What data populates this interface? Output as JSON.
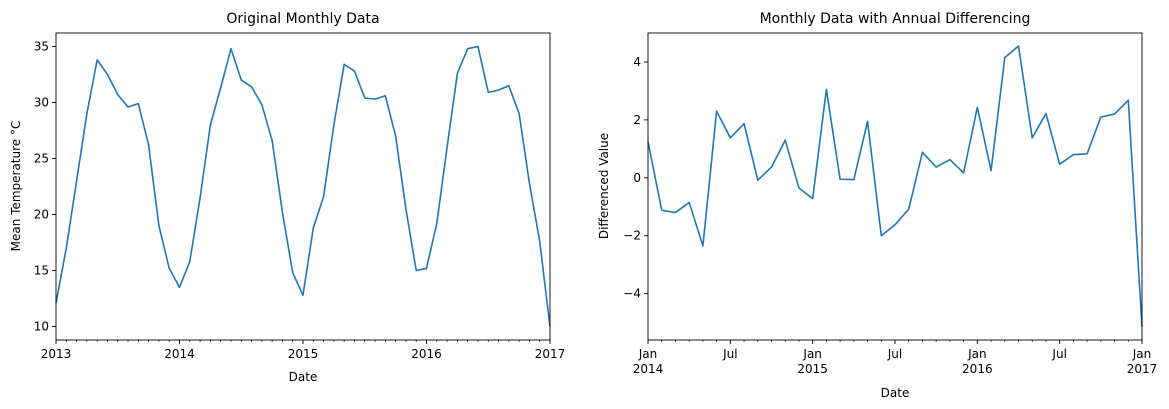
{
  "chart_data": [
    {
      "type": "line",
      "title": "Original Monthly Data",
      "xlabel": "Date",
      "ylabel": "Mean Temperature °C",
      "xlim": [
        "2013-01",
        "2017-01"
      ],
      "ylim": [
        8.8,
        36.2
      ],
      "yticks": [
        10,
        15,
        20,
        25,
        30,
        35
      ],
      "xticks": [
        {
          "at": "2013-01",
          "label": "2013"
        },
        {
          "at": "2014-01",
          "label": "2014"
        },
        {
          "at": "2015-01",
          "label": "2015"
        },
        {
          "at": "2016-01",
          "label": "2016"
        },
        {
          "at": "2017-01",
          "label": "2017"
        }
      ],
      "grid": false,
      "color": "#1f77b4",
      "series": [
        {
          "x": [
            "2013-01",
            "2013-02",
            "2013-03",
            "2013-04",
            "2013-05",
            "2013-06",
            "2013-07",
            "2013-08",
            "2013-09",
            "2013-10",
            "2013-11",
            "2013-12",
            "2014-01",
            "2014-02",
            "2014-03",
            "2014-04",
            "2014-05",
            "2014-06",
            "2014-07",
            "2014-08",
            "2014-09",
            "2014-10",
            "2014-11",
            "2014-12",
            "2015-01",
            "2015-02",
            "2015-03",
            "2015-04",
            "2015-05",
            "2015-06",
            "2015-07",
            "2015-08",
            "2015-09",
            "2015-10",
            "2015-11",
            "2015-12",
            "2016-01",
            "2016-02",
            "2016-03",
            "2016-04",
            "2016-05",
            "2016-06",
            "2016-07",
            "2016-08",
            "2016-09",
            "2016-10",
            "2016-11",
            "2016-12",
            "2017-01"
          ],
          "values": [
            12.1,
            17.0,
            23.0,
            29.0,
            33.8,
            32.5,
            30.7,
            29.6,
            29.9,
            26.2,
            19.0,
            15.2,
            13.5,
            15.8,
            21.5,
            28.0,
            31.3,
            34.8,
            32.0,
            31.4,
            29.8,
            26.6,
            20.2,
            14.8,
            12.8,
            18.8,
            21.6,
            28.0,
            33.4,
            32.8,
            30.4,
            30.3,
            30.6,
            27.0,
            20.5,
            15.0,
            15.2,
            19.2,
            26.0,
            32.6,
            34.8,
            35.0,
            30.9,
            31.1,
            31.5,
            29.0,
            22.8,
            17.6,
            10.0
          ]
        }
      ]
    },
    {
      "type": "line",
      "title": "Monthly Data with Annual Differencing",
      "xlabel": "Date",
      "ylabel": "Differenced Value",
      "xlim": [
        "2014-01",
        "2017-01"
      ],
      "ylim": [
        -5.6,
        5.0
      ],
      "yticks": [
        -4,
        -2,
        0,
        2,
        4
      ],
      "xticks": [
        {
          "at": "2014-01",
          "label": "Jan",
          "label2": "2014"
        },
        {
          "at": "2014-07",
          "label": "Jul"
        },
        {
          "at": "2015-01",
          "label": "Jan",
          "label2": "2015"
        },
        {
          "at": "2015-07",
          "label": "Jul"
        },
        {
          "at": "2016-01",
          "label": "Jan",
          "label2": "2016"
        },
        {
          "at": "2016-07",
          "label": "Jul"
        },
        {
          "at": "2017-01",
          "label": "Jan",
          "label2": "2017"
        }
      ],
      "grid": false,
      "color": "#1f77b4",
      "series": [
        {
          "x": [
            "2014-01",
            "2014-02",
            "2014-03",
            "2014-04",
            "2014-05",
            "2014-06",
            "2014-07",
            "2014-08",
            "2014-09",
            "2014-10",
            "2014-11",
            "2014-12",
            "2015-01",
            "2015-02",
            "2015-03",
            "2015-04",
            "2015-05",
            "2015-06",
            "2015-07",
            "2015-08",
            "2015-09",
            "2015-10",
            "2015-11",
            "2015-12",
            "2016-01",
            "2016-02",
            "2016-03",
            "2016-04",
            "2016-05",
            "2016-06",
            "2016-07",
            "2016-08",
            "2016-09",
            "2016-10",
            "2016-11",
            "2016-12",
            "2017-01"
          ],
          "values": [
            1.25,
            -1.12,
            -1.2,
            -0.85,
            -2.35,
            2.3,
            1.38,
            1.87,
            -0.08,
            0.37,
            1.3,
            -0.35,
            -0.72,
            3.05,
            -0.05,
            -0.06,
            1.95,
            -2.0,
            -1.62,
            -1.08,
            0.88,
            0.37,
            0.63,
            0.17,
            2.43,
            0.25,
            4.15,
            4.55,
            1.38,
            2.22,
            0.47,
            0.8,
            0.83,
            2.1,
            2.2,
            2.68,
            -5.15
          ]
        }
      ]
    }
  ]
}
